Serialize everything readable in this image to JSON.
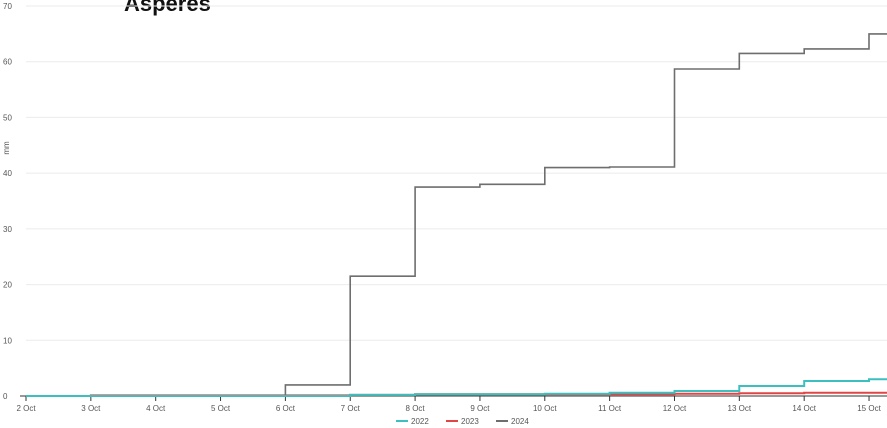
{
  "chart_data": {
    "type": "line",
    "step": true,
    "title": "Asperes",
    "xlabel": "",
    "ylabel": "mm",
    "ylim": [
      0,
      70
    ],
    "yticks": [
      0,
      10,
      20,
      30,
      40,
      50,
      60,
      70
    ],
    "xlim": [
      "2 Oct",
      "15 Oct"
    ],
    "xticks": [
      "2 Oct",
      "3 Oct",
      "4 Oct",
      "5 Oct",
      "6 Oct",
      "7 Oct",
      "8 Oct",
      "9 Oct",
      "10 Oct",
      "11 Oct",
      "12 Oct",
      "13 Oct",
      "14 Oct",
      "15 Oct"
    ],
    "grid": "horizontal",
    "legend_position": "bottom",
    "series": [
      {
        "name": "2022",
        "color": "#3bbfbf",
        "points": [
          [
            "2 Oct",
            0
          ],
          [
            "3 Oct",
            0
          ],
          [
            "4 Oct",
            0
          ],
          [
            "5 Oct",
            0
          ],
          [
            "6 Oct",
            0
          ],
          [
            "7 Oct",
            0.2
          ],
          [
            "8 Oct",
            0.3
          ],
          [
            "9 Oct",
            0.3
          ],
          [
            "10 Oct",
            0.4
          ],
          [
            "11 Oct",
            0.6
          ],
          [
            "12 Oct",
            0.9
          ],
          [
            "13 Oct",
            1.8
          ],
          [
            "14 Oct",
            2.7
          ],
          [
            "15 Oct",
            3.0
          ],
          [
            "15 Oct 07:00",
            3.1
          ]
        ]
      },
      {
        "name": "2023",
        "color": "#e04646",
        "points": [
          [
            "2 Oct",
            0
          ],
          [
            "3 Oct",
            0.1
          ],
          [
            "4 Oct",
            0.1
          ],
          [
            "5 Oct",
            0.1
          ],
          [
            "6 Oct",
            0.1
          ],
          [
            "7 Oct",
            0.2
          ],
          [
            "8 Oct",
            0.3
          ],
          [
            "9 Oct",
            0.3
          ],
          [
            "10 Oct",
            0.3
          ],
          [
            "11 Oct",
            0.3
          ],
          [
            "12 Oct",
            0.4
          ],
          [
            "13 Oct",
            0.5
          ],
          [
            "14 Oct",
            0.6
          ],
          [
            "15 Oct",
            0.6
          ],
          [
            "15 Oct 07:00",
            0.6
          ]
        ]
      },
      {
        "name": "2024",
        "color": "#6e6e6e",
        "points": [
          [
            "2 Oct",
            0
          ],
          [
            "3 Oct",
            0
          ],
          [
            "4 Oct",
            0
          ],
          [
            "5 Oct",
            0
          ],
          [
            "6 Oct",
            2.0
          ],
          [
            "7 Oct",
            21.5
          ],
          [
            "8 Oct",
            37.5
          ],
          [
            "9 Oct",
            38.0
          ],
          [
            "10 Oct",
            41.0
          ],
          [
            "11 Oct",
            41.1
          ],
          [
            "12 Oct",
            58.7
          ],
          [
            "13 Oct",
            61.5
          ],
          [
            "14 Oct",
            62.3
          ],
          [
            "15 Oct",
            65.0
          ],
          [
            "15 Oct 07:00",
            65.0
          ]
        ]
      }
    ]
  }
}
